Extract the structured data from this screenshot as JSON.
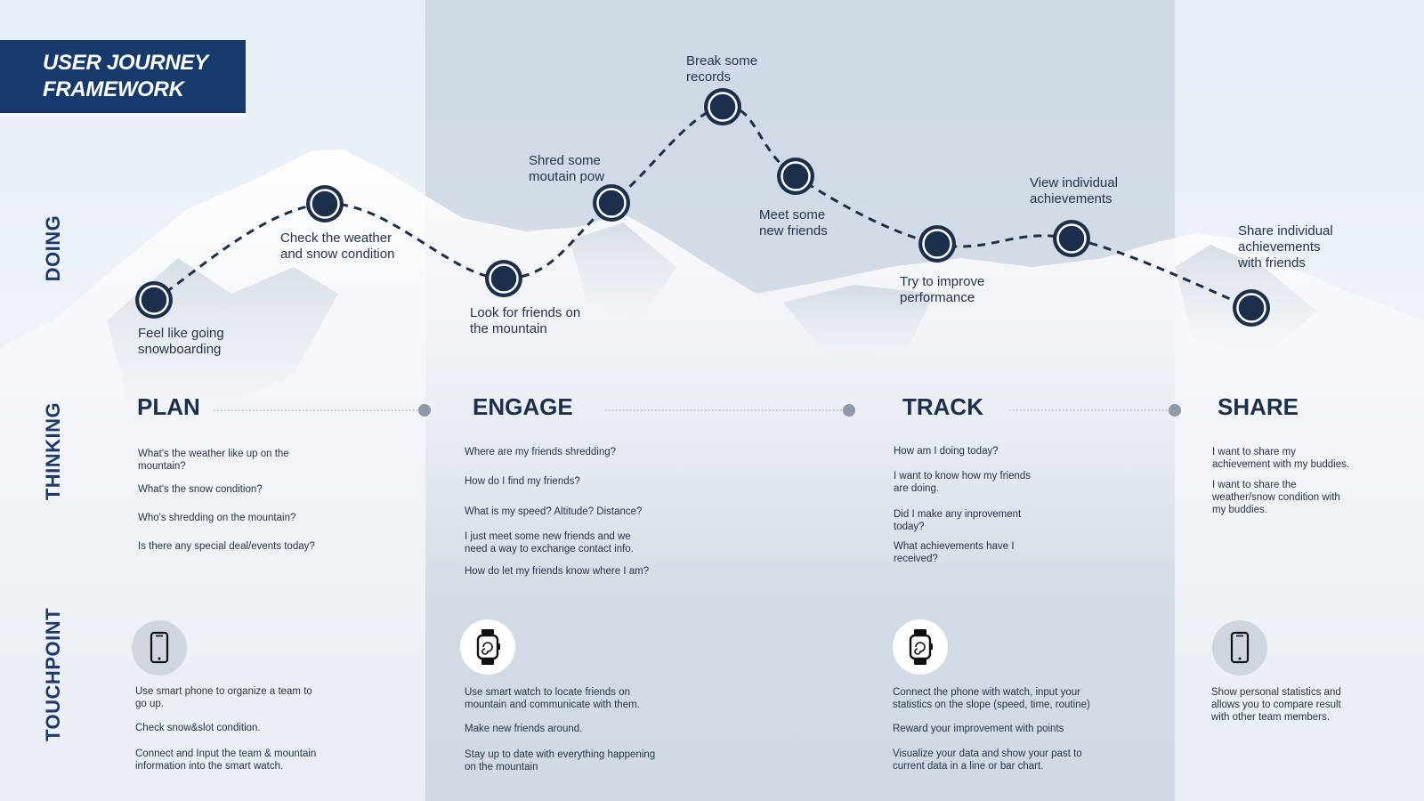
{
  "title": {
    "line1": "USER JOURNEY",
    "line2": "FRAMEWORK"
  },
  "rows": {
    "doing": "DOING",
    "thinking": "THINKING",
    "touchpoint": "TOUCHPOINT"
  },
  "colors": {
    "navy": "#153a6b",
    "node": "#1c2f4a",
    "band": "#aebccd"
  },
  "journey_steps": [
    {
      "label": [
        "Feel like going",
        "snowboarding"
      ]
    },
    {
      "label": [
        "Check the weather",
        "and snow condition"
      ]
    },
    {
      "label": [
        "Look for friends on",
        "the mountain"
      ]
    },
    {
      "label": [
        "Shred some",
        "moutain pow"
      ]
    },
    {
      "label": [
        "Break some",
        "records"
      ]
    },
    {
      "label": [
        "Meet some",
        "new friends"
      ]
    },
    {
      "label": [
        "Try to improve",
        "performance"
      ]
    },
    {
      "label": [
        "View individual",
        "achievements"
      ]
    },
    {
      "label": [
        "Share individual",
        "achievements",
        "with friends"
      ]
    }
  ],
  "phases": [
    {
      "name": "PLAN",
      "questions": [
        [
          "What's the weather like up on the",
          "mountain?"
        ],
        [
          "What's the snow condition?"
        ],
        [
          "Who's shredding on the mountain?"
        ],
        [
          "Is there any special deal/events today?"
        ]
      ],
      "touchpoint": {
        "icon": "smartphone-icon",
        "items": [
          [
            "Use smart phone to organize a team to",
            "go up."
          ],
          [
            "Check snow&slot condition."
          ],
          [
            "Connect and Input the team & mountain",
            "information into the smart watch."
          ]
        ]
      }
    },
    {
      "name": "ENGAGE",
      "questions": [
        [
          "Where are my friends shredding?"
        ],
        [
          "How do I find my friends?"
        ],
        [
          "What is my speed? Altitude? Distance?"
        ],
        [
          "I just meet some new friends and we",
          "need a way to exchange contact info."
        ],
        [
          "How do let my friends know where I am?"
        ]
      ],
      "touchpoint": {
        "icon": "smartwatch-icon",
        "items": [
          [
            "Use smart watch to locate friends on",
            "mountain and communicate with them."
          ],
          [
            "Make new friends around."
          ],
          [
            "Stay up to date with everything happening",
            "on the mountain"
          ]
        ]
      }
    },
    {
      "name": "TRACK",
      "questions": [
        [
          "How am I doing today?"
        ],
        [
          "I want to know how my friends",
          "are doing."
        ],
        [
          "Did I make any inprovement",
          "today?"
        ],
        [
          "What achievements have I",
          "received?"
        ]
      ],
      "touchpoint": {
        "icon": "smartwatch-icon",
        "items": [
          [
            "Connect the phone with watch, input your",
            "statistics on the slope (speed, time, routine)"
          ],
          [
            "Reward your improvement with points"
          ],
          [
            "Visualize your data and show your past to",
            "current data in a line or bar chart."
          ]
        ]
      }
    },
    {
      "name": "SHARE",
      "questions": [
        [
          "I want to share my",
          "achievement with my buddies."
        ],
        [
          "I want to share the",
          "weather/snow condition with",
          "my buddies."
        ]
      ],
      "touchpoint": {
        "icon": "smartphone-icon",
        "items": [
          [
            "Show personal statistics and",
            "allows you to compare result",
            "with other team members."
          ]
        ]
      }
    }
  ]
}
